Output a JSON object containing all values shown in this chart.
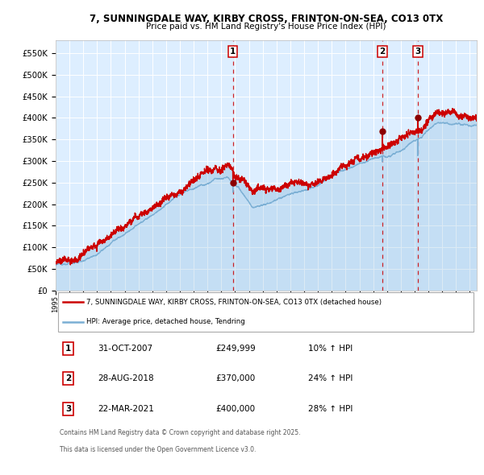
{
  "title1": "7, SUNNINGDALE WAY, KIRBY CROSS, FRINTON-ON-SEA, CO13 0TX",
  "title2": "Price paid vs. HM Land Registry's House Price Index (HPI)",
  "ylim": [
    0,
    580000
  ],
  "yticks": [
    0,
    50000,
    100000,
    150000,
    200000,
    250000,
    300000,
    350000,
    400000,
    450000,
    500000,
    550000
  ],
  "ytick_labels": [
    "£0",
    "£50K",
    "£100K",
    "£150K",
    "£200K",
    "£250K",
    "£300K",
    "£350K",
    "£400K",
    "£450K",
    "£500K",
    "£550K"
  ],
  "hpi_color": "#7bafd4",
  "price_color": "#cc0000",
  "bg_color": "#ddeeff",
  "grid_color": "#ffffff",
  "vline_color": "#cc0000",
  "sale1_date": 2007.83,
  "sale1_price": 249999,
  "sale1_hpi_pct": 10,
  "sale1_date_str": "31-OCT-2007",
  "sale2_date": 2018.66,
  "sale2_price": 370000,
  "sale2_hpi_pct": 24,
  "sale2_date_str": "28-AUG-2018",
  "sale3_date": 2021.23,
  "sale3_price": 400000,
  "sale3_hpi_pct": 28,
  "sale3_date_str": "22-MAR-2021",
  "legend_label1": "7, SUNNINGDALE WAY, KIRBY CROSS, FRINTON-ON-SEA, CO13 0TX (detached house)",
  "legend_label2": "HPI: Average price, detached house, Tendring",
  "footer1": "Contains HM Land Registry data © Crown copyright and database right 2025.",
  "footer2": "This data is licensed under the Open Government Licence v3.0.",
  "xstart": 1995.0,
  "xend": 2025.5
}
